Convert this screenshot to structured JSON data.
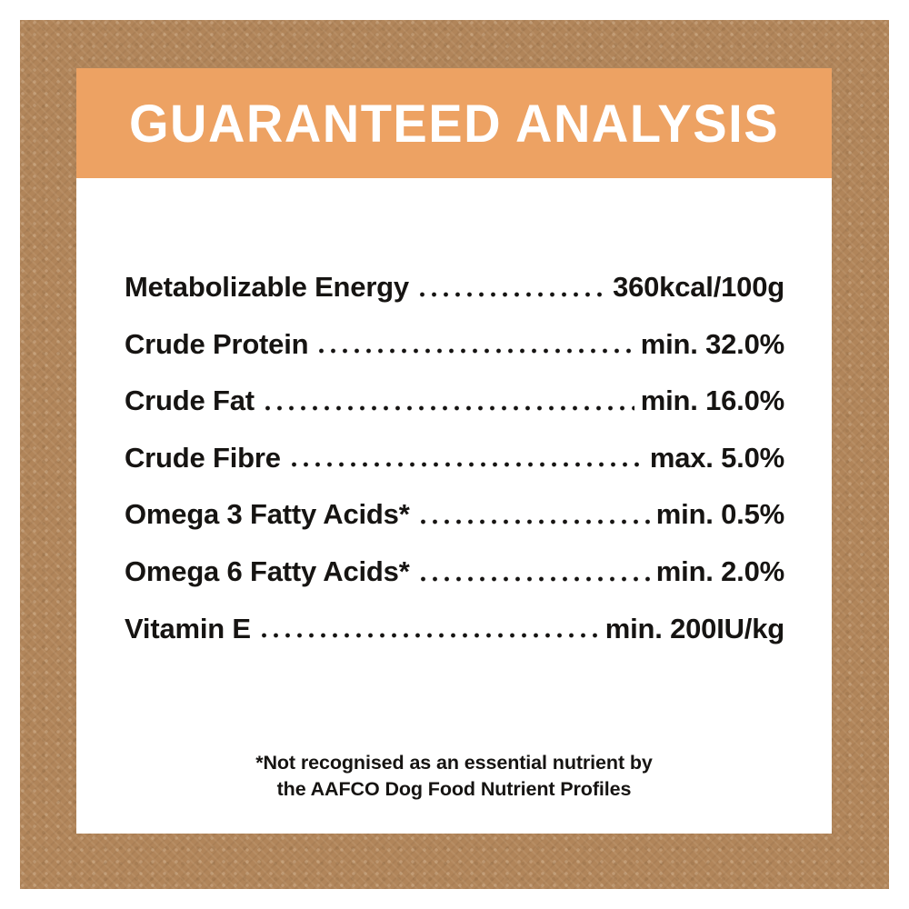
{
  "header": {
    "title": "GUARANTEED ANALYSIS"
  },
  "nutrients": [
    {
      "label": "Metabolizable Energy",
      "value": "360kcal/100g"
    },
    {
      "label": "Crude Protein",
      "value": "min. 32.0%"
    },
    {
      "label": "Crude Fat",
      "value": "min. 16.0%"
    },
    {
      "label": "Crude Fibre",
      "value": "max. 5.0%"
    },
    {
      "label": "Omega 3 Fatty Acids*",
      "value": "min. 0.5%"
    },
    {
      "label": "Omega 6 Fatty Acids*",
      "value": "min. 2.0%"
    },
    {
      "label": "Vitamin E",
      "value": "min. 200IU/kg"
    }
  ],
  "footnote": {
    "line1": "*Not recognised as an essential nutrient by",
    "line2": "the AAFCO Dog Food Nutrient Profiles"
  },
  "colors": {
    "accent_orange": "#eda263",
    "burlap_brown": "#b1855a",
    "panel_white": "#ffffff",
    "outer_white": "#ffffff",
    "header_text": "#ffffff",
    "text_black": "#161412"
  }
}
